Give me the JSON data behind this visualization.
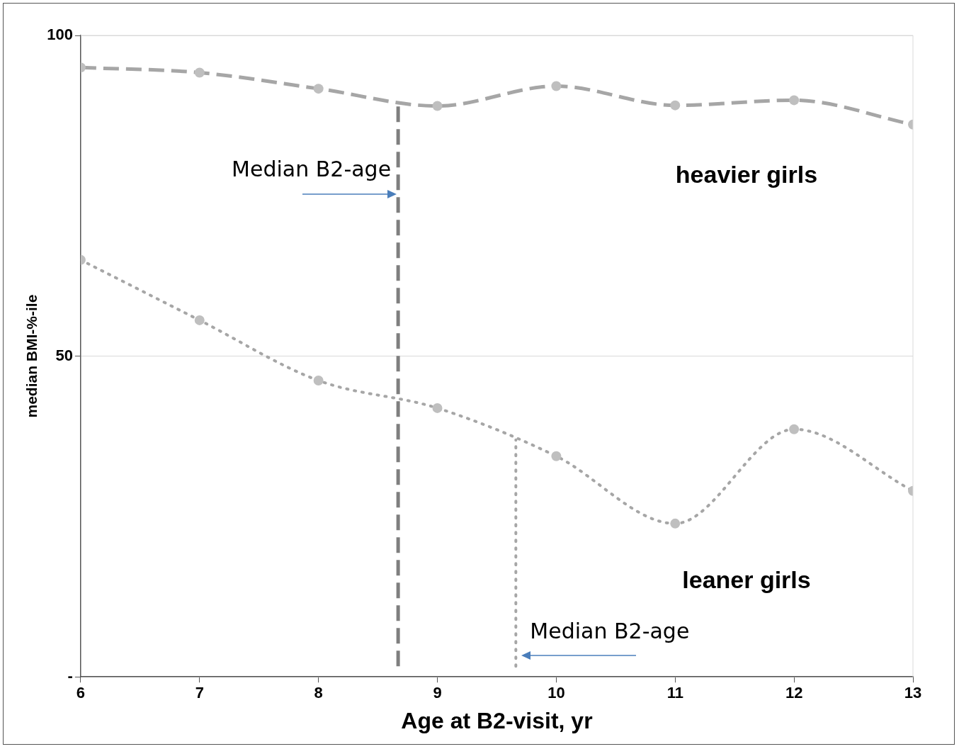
{
  "chart_data": {
    "type": "line",
    "xlabel": "Age at B2-visit, yr",
    "ylabel": "median BMI-%-ile",
    "x": [
      6,
      7,
      8,
      9,
      10,
      11,
      12,
      13
    ],
    "series": [
      {
        "name": "heavier girls",
        "color": "#a6a6a6",
        "line_style": "dashed",
        "values": [
          95.0,
          94.2,
          91.7,
          89.0,
          92.1,
          89.1,
          89.9,
          86.1
        ]
      },
      {
        "name": "leaner girls",
        "color": "#a6a6a6",
        "line_style": "dotted",
        "values": [
          65.0,
          55.6,
          46.2,
          41.9,
          34.4,
          23.9,
          38.6,
          29.0
        ]
      }
    ],
    "xlim": [
      6,
      13
    ],
    "xticks": [
      6,
      7,
      8,
      9,
      10,
      11,
      12,
      13
    ],
    "ylim": [
      0,
      100
    ],
    "yticks": [
      {
        "value": 0,
        "label": "-"
      },
      50,
      100
    ],
    "grid": "y",
    "marker": "circle",
    "legend": false,
    "ref_lines": [
      {
        "axis": "x",
        "value": 8.67,
        "label": "Median B2-age",
        "color": "#7f7f7f",
        "line_style": "dashed"
      },
      {
        "axis": "x",
        "value": 9.66,
        "label": "Median B2-age",
        "color": "#a6a6a6",
        "line_style": "dotted"
      }
    ]
  }
}
